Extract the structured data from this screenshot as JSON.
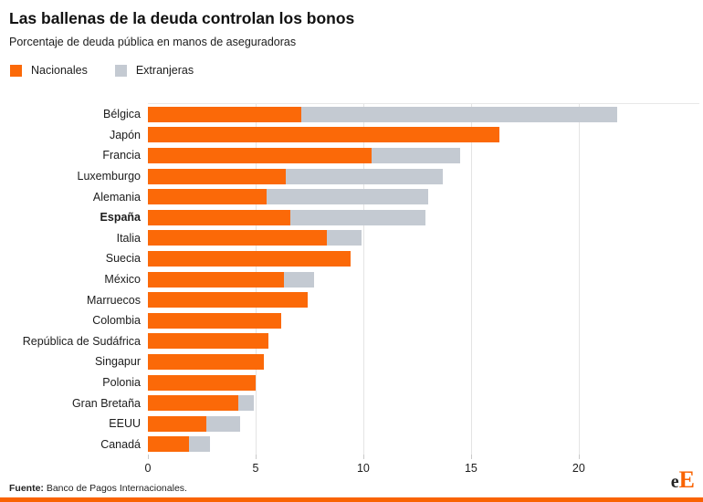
{
  "header": {
    "title": "Las ballenas de la deuda controlan los bonos",
    "subtitle": "Porcentaje de deuda pública en manos de aseguradoras"
  },
  "legend": [
    {
      "label": "Nacionales",
      "color": "#fb6908"
    },
    {
      "label": "Extranjeras",
      "color": "#c4cad2"
    }
  ],
  "chart_data": {
    "type": "bar",
    "orientation": "horizontal",
    "stacked": true,
    "grid": "vertical",
    "categories": [
      "Bélgica",
      "Japón",
      "Francia",
      "Luxemburgo",
      "Alemania",
      "España",
      "Italia",
      "Suecia",
      "México",
      "Marruecos",
      "Colombia",
      "República de Sudáfrica",
      "Singapur",
      "Polonia",
      "Gran Bretaña",
      "EEUU",
      "Canadá"
    ],
    "series": [
      {
        "name": "Nacionales",
        "color": "#fb6908",
        "values": [
          7.1,
          16.3,
          10.4,
          6.4,
          5.5,
          6.6,
          8.3,
          9.4,
          6.3,
          7.4,
          6.2,
          5.6,
          5.4,
          5.0,
          4.2,
          2.7,
          1.9
        ]
      },
      {
        "name": "Extranjeras",
        "color": "#c4cad2",
        "values": [
          14.7,
          0,
          4.1,
          7.3,
          7.5,
          6.3,
          1.6,
          0,
          1.4,
          0,
          0,
          0,
          0,
          0,
          0.7,
          1.6,
          1.0
        ]
      }
    ],
    "highlight_category": "España",
    "x_ticks": [
      0,
      5,
      10,
      15,
      20
    ],
    "xlim": [
      0,
      25.6
    ]
  },
  "footer": {
    "source_label": "Fuente:",
    "source_text": " Banco de Pagos Internacionales.",
    "logo_e": "e",
    "logo_E": "E"
  },
  "colors": {
    "accent": "#fb6908",
    "foreign": "#c4cad2",
    "bottom_bar": "#f96302",
    "logo_orange": "#f96302"
  }
}
